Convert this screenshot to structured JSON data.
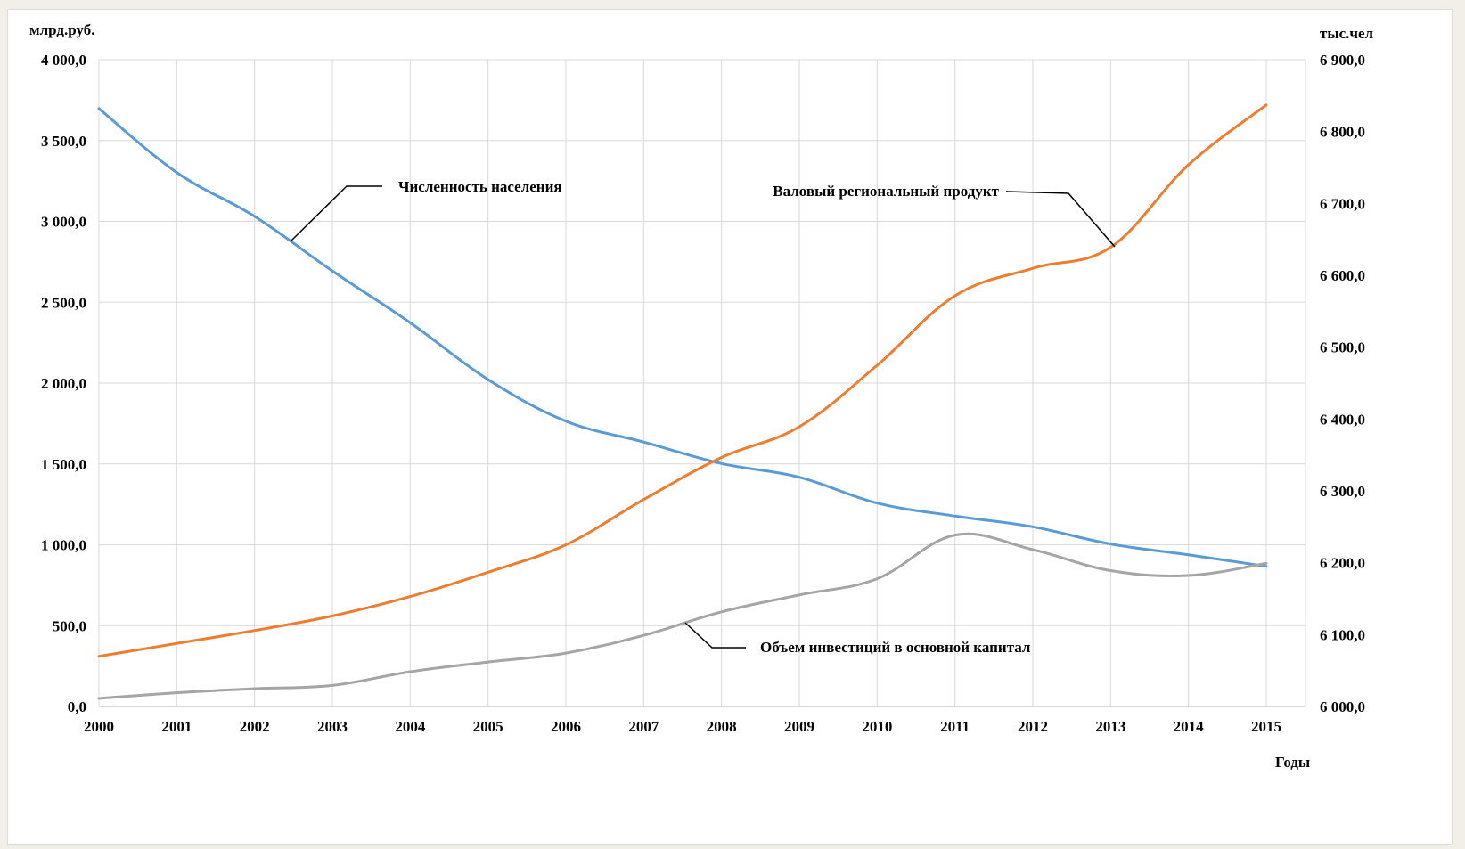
{
  "chart_data": {
    "type": "line",
    "categories": [
      "2000",
      "2001",
      "2002",
      "2003",
      "2004",
      "2005",
      "2006",
      "2007",
      "2008",
      "2009",
      "2010",
      "2011",
      "2012",
      "2013",
      "2014",
      "2015"
    ],
    "left_axis": {
      "unit": "млрд.руб.",
      "ylim": [
        0,
        4000
      ],
      "ticks": [
        0,
        500,
        1000,
        1500,
        2000,
        2500,
        3000,
        3500,
        4000
      ],
      "tick_labels": [
        "0,0",
        "500,0",
        "1 000,0",
        "1 500,0",
        "2 000,0",
        "2 500,0",
        "3 000,0",
        "3 500,0",
        "4 000,0"
      ]
    },
    "right_axis": {
      "unit": "тыс.чел",
      "ylim": [
        6000,
        6900
      ],
      "ticks": [
        6000,
        6100,
        6200,
        6300,
        6400,
        6500,
        6600,
        6700,
        6800,
        6900
      ],
      "tick_labels": [
        "6 000,0",
        "6 100,0",
        "6 200,0",
        "6 300,0",
        "6 400,0",
        "6 500,0",
        "6 600,0",
        "6 700,0",
        "6 800,0",
        "6 900,0"
      ]
    },
    "xlabel": "Годы",
    "grid": true,
    "series": [
      {
        "name": "Численность населения",
        "axis": "right",
        "color": "#5b9bd5",
        "values": [
          6832,
          6743,
          6682,
          6606,
          6534,
          6455,
          6397,
          6368,
          6338,
          6319,
          6283,
          6265,
          6250,
          6226,
          6211,
          6195
        ]
      },
      {
        "name": "Валовый региональный продукт",
        "axis": "left",
        "color": "#ed7d31",
        "values": [
          310,
          390,
          470,
          560,
          680,
          830,
          1000,
          1280,
          1540,
          1730,
          2110,
          2540,
          2710,
          2840,
          3350,
          3720
        ]
      },
      {
        "name": "Объем инвестиций в основной капитал",
        "axis": "left",
        "color": "#a5a5a5",
        "values": [
          50,
          85,
          110,
          130,
          215,
          275,
          330,
          440,
          585,
          690,
          790,
          1060,
          970,
          840,
          810,
          885
        ]
      }
    ]
  }
}
